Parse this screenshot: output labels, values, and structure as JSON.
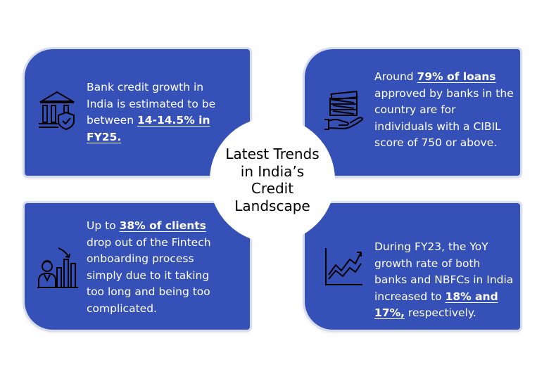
{
  "center": {
    "title": "Latest Trends in India’s Credit Landscape"
  },
  "cards": {
    "bank_credit": {
      "icon": "bank-shield-icon",
      "text_before": "Bank credit growth in India is estimated to be between ",
      "highlight": "14-14.5% in FY25.",
      "text_after": ""
    },
    "loans": {
      "icon": "money-hand-icon",
      "text_before": "Around ",
      "highlight": "79% of loans ",
      "text_after": "approved by banks in the country are for individuals with a CIBIL score of 750 or above."
    },
    "fintech": {
      "icon": "person-declining-chart-icon",
      "text_before": "Up to ",
      "highlight": "38% of clients",
      "text_after": " drop out of the Fintech onboarding process simply due to it taking too long and being too complicated."
    },
    "growth": {
      "icon": "growth-chart-icon",
      "text_before": "During FY23, the YoY growth rate of both banks and NBFCs in India increased to ",
      "highlight": "18% and 17%,",
      "text_after": " respectively."
    }
  },
  "colors": {
    "card": "#3550b7",
    "card_border": "#d8dcef",
    "text": "#ffffff",
    "title": "#000000"
  }
}
